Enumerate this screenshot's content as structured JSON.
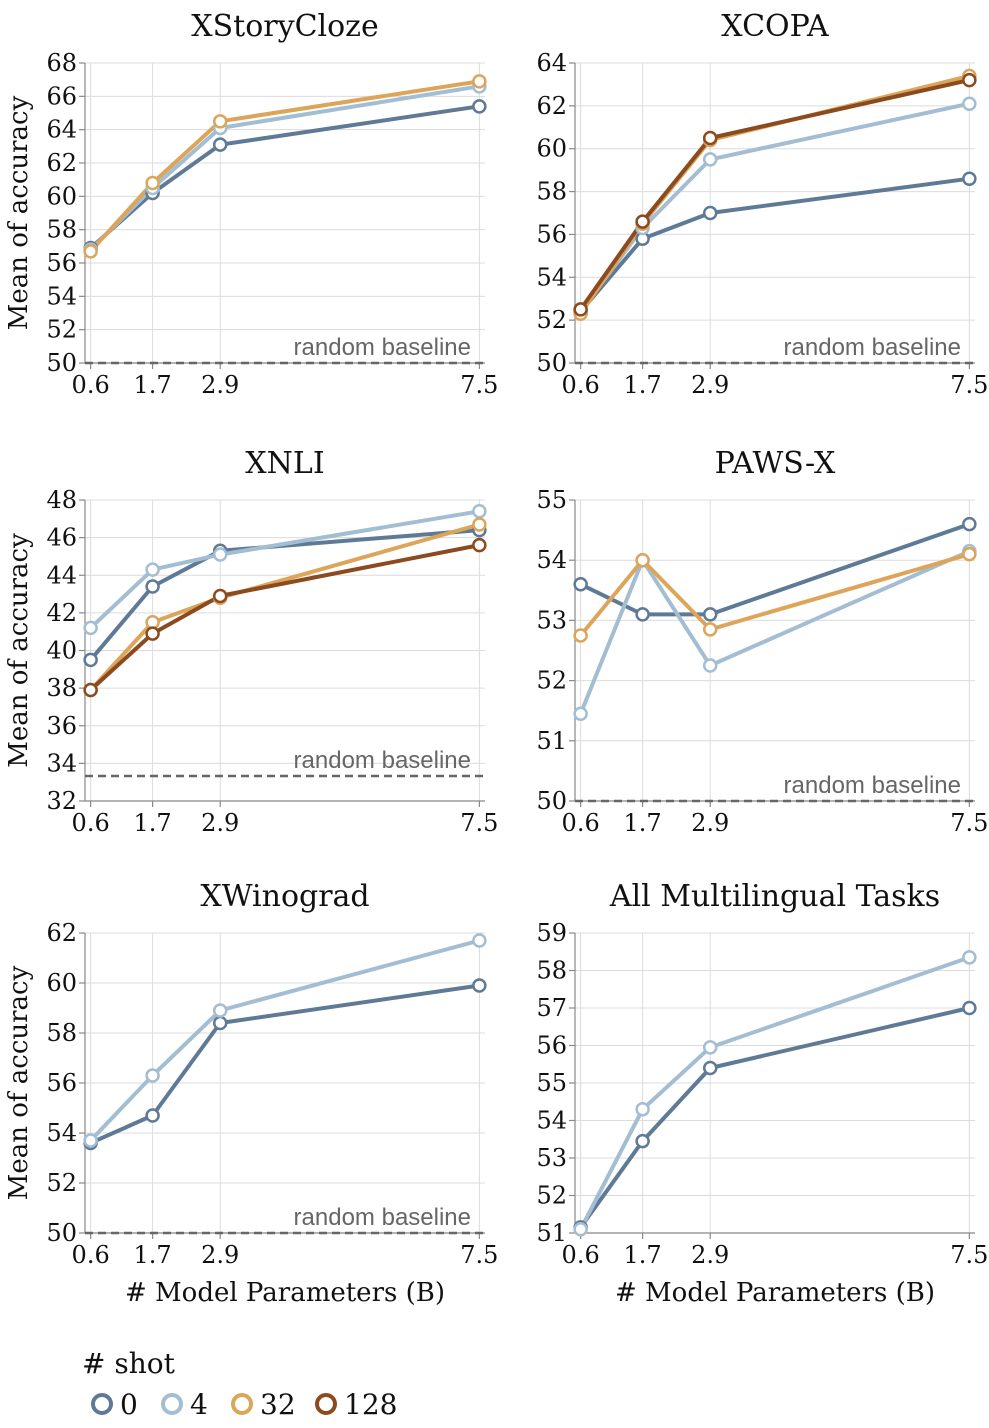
{
  "figure": {
    "xlabel": "# Model Parameters (B)",
    "ylabel": "Mean of accuracy",
    "baseline_label": "random baseline",
    "legend_title": "# shot"
  },
  "colors": {
    "0": "#5f7a96",
    "4": "#a3bdd3",
    "32": "#dca55a",
    "128": "#8c4a1f"
  },
  "legend": [
    {
      "shot": "0",
      "label": "0"
    },
    {
      "shot": "4",
      "label": "4"
    },
    {
      "shot": "32",
      "label": "32"
    },
    {
      "shot": "128",
      "label": "128"
    }
  ],
  "chart_data": [
    {
      "type": "line",
      "title": "XStoryCloze",
      "x": [
        0.6,
        1.7,
        2.9,
        7.5
      ],
      "x_tick_labels": [
        "0.6",
        "1.7",
        "2.9",
        "7.5"
      ],
      "ylim": [
        50,
        68
      ],
      "yticks": [
        50,
        52,
        54,
        56,
        58,
        60,
        62,
        64,
        66,
        68
      ],
      "baseline": 50,
      "show_ylabel": true,
      "show_xlabel": false,
      "series": [
        {
          "name": "0",
          "values": [
            56.9,
            60.2,
            63.1,
            65.4
          ]
        },
        {
          "name": "4",
          "values": [
            56.8,
            60.5,
            64.1,
            66.6
          ]
        },
        {
          "name": "32",
          "values": [
            56.7,
            60.8,
            64.5,
            66.9
          ]
        }
      ]
    },
    {
      "type": "line",
      "title": "XCOPA",
      "x": [
        0.6,
        1.7,
        2.9,
        7.5
      ],
      "x_tick_labels": [
        "0.6",
        "1.7",
        "2.9",
        "7.5"
      ],
      "ylim": [
        50,
        64
      ],
      "yticks": [
        50,
        52,
        54,
        56,
        58,
        60,
        62,
        64
      ],
      "baseline": 50,
      "show_ylabel": false,
      "show_xlabel": false,
      "series": [
        {
          "name": "0",
          "values": [
            52.4,
            55.8,
            57.0,
            58.6
          ]
        },
        {
          "name": "4",
          "values": [
            52.4,
            56.3,
            59.5,
            62.1
          ]
        },
        {
          "name": "32",
          "values": [
            52.3,
            56.5,
            60.4,
            63.4
          ]
        },
        {
          "name": "128",
          "values": [
            52.5,
            56.6,
            60.5,
            63.2
          ]
        }
      ]
    },
    {
      "type": "line",
      "title": "XNLI",
      "x": [
        0.6,
        1.7,
        2.9,
        7.5
      ],
      "x_tick_labels": [
        "0.6",
        "1.7",
        "2.9",
        "7.5"
      ],
      "ylim": [
        32,
        48
      ],
      "yticks": [
        32,
        34,
        36,
        38,
        40,
        42,
        44,
        46,
        48
      ],
      "baseline": 33.33,
      "show_ylabel": true,
      "show_xlabel": false,
      "series": [
        {
          "name": "0",
          "values": [
            39.5,
            43.4,
            45.3,
            46.4
          ]
        },
        {
          "name": "4",
          "values": [
            41.2,
            44.3,
            45.1,
            47.4
          ]
        },
        {
          "name": "32",
          "values": [
            37.9,
            41.5,
            42.8,
            46.7
          ]
        },
        {
          "name": "128",
          "values": [
            37.9,
            40.9,
            42.9,
            45.6
          ]
        }
      ]
    },
    {
      "type": "line",
      "title": "PAWS-X",
      "x": [
        0.6,
        1.7,
        2.9,
        7.5
      ],
      "x_tick_labels": [
        "0.6",
        "1.7",
        "2.9",
        "7.5"
      ],
      "ylim": [
        50,
        55
      ],
      "yticks": [
        50,
        51,
        52,
        53,
        54,
        55
      ],
      "baseline": 50,
      "show_ylabel": false,
      "show_xlabel": false,
      "series": [
        {
          "name": "0",
          "values": [
            53.6,
            53.1,
            53.1,
            54.6
          ]
        },
        {
          "name": "4",
          "values": [
            51.45,
            54.0,
            52.25,
            54.15
          ]
        },
        {
          "name": "32",
          "values": [
            52.75,
            54.0,
            52.85,
            54.1
          ]
        }
      ]
    },
    {
      "type": "line",
      "title": "XWinograd",
      "x": [
        0.6,
        1.7,
        2.9,
        7.5
      ],
      "x_tick_labels": [
        "0.6",
        "1.7",
        "2.9",
        "7.5"
      ],
      "ylim": [
        50,
        62
      ],
      "yticks": [
        50,
        52,
        54,
        56,
        58,
        60,
        62
      ],
      "baseline": 50,
      "show_ylabel": true,
      "show_xlabel": true,
      "series": [
        {
          "name": "0",
          "values": [
            53.6,
            54.7,
            58.4,
            59.9
          ]
        },
        {
          "name": "4",
          "values": [
            53.7,
            56.3,
            58.9,
            61.7
          ]
        }
      ]
    },
    {
      "type": "line",
      "title": "All Multilingual Tasks",
      "x": [
        0.6,
        1.7,
        2.9,
        7.5
      ],
      "x_tick_labels": [
        "0.6",
        "1.7",
        "2.9",
        "7.5"
      ],
      "ylim": [
        51,
        59
      ],
      "yticks": [
        51,
        52,
        53,
        54,
        55,
        56,
        57,
        58,
        59
      ],
      "baseline": null,
      "show_ylabel": false,
      "show_xlabel": true,
      "series": [
        {
          "name": "0",
          "values": [
            51.15,
            53.45,
            55.4,
            57.0
          ]
        },
        {
          "name": "4",
          "values": [
            51.1,
            54.3,
            55.95,
            58.35
          ]
        }
      ]
    }
  ]
}
